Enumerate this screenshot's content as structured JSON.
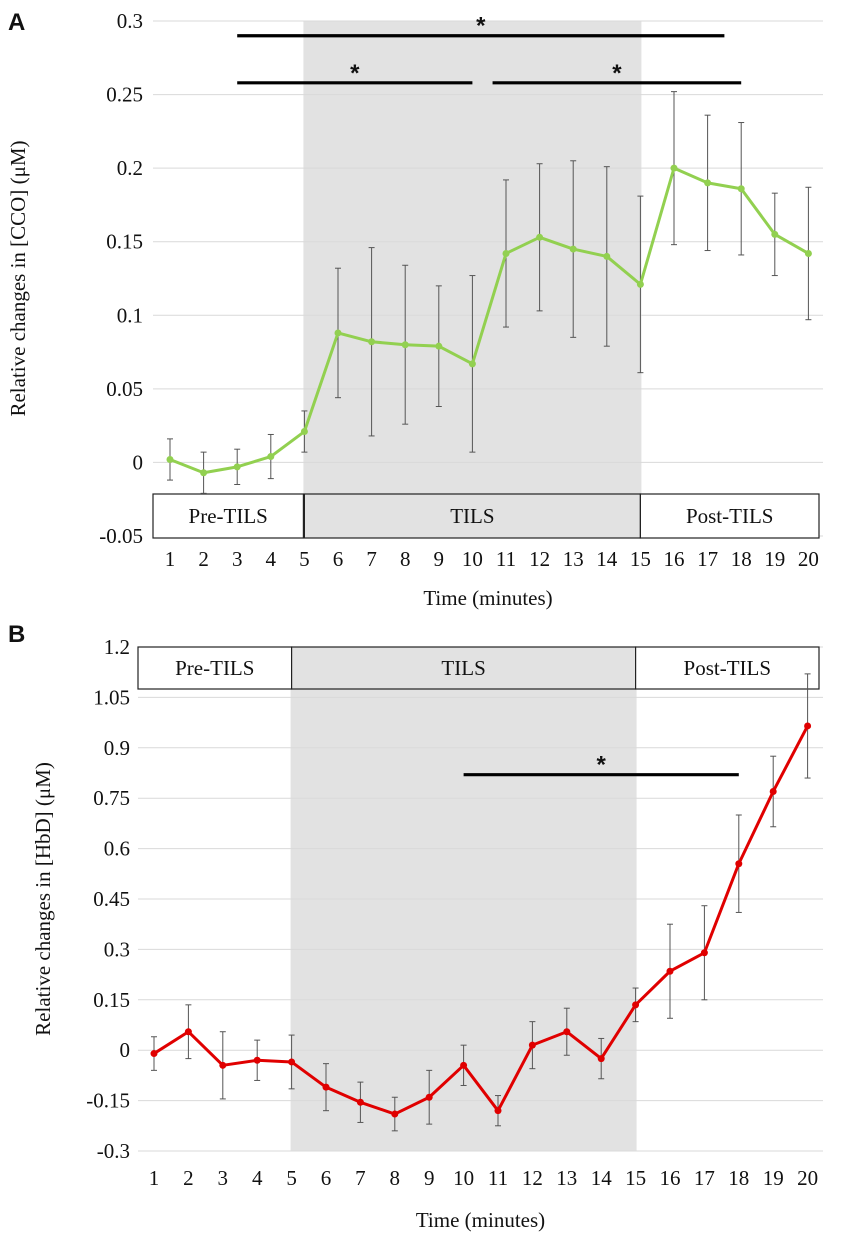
{
  "chart_data": [
    {
      "type": "line",
      "panel_label": "A",
      "ylabel": "Relative changes in [CCO] (μM)",
      "xlabel": "Time (minutes)",
      "ylim": [
        -0.05,
        0.3
      ],
      "y_ticks": [
        -0.05,
        0,
        0.05,
        0.1,
        0.15,
        0.2,
        0.25,
        0.3
      ],
      "y_tick_labels": [
        "-0.05",
        "0",
        "0.05",
        "0.1",
        "0.15",
        "0.2",
        "0.25",
        "0.3"
      ],
      "x": [
        1,
        2,
        3,
        4,
        5,
        6,
        7,
        8,
        9,
        10,
        11,
        12,
        13,
        14,
        15,
        16,
        17,
        18,
        19,
        20
      ],
      "x_tick_labels": [
        "1",
        "2",
        "3",
        "4",
        "5",
        "6",
        "7",
        "8",
        "9",
        "10",
        "11",
        "12",
        "13",
        "14",
        "15",
        "16",
        "17",
        "18",
        "19",
        "20"
      ],
      "grid": true,
      "series": [
        {
          "name": "CCO",
          "color": "#92d050",
          "values": [
            0.002,
            -0.007,
            -0.003,
            0.004,
            0.021,
            0.088,
            0.082,
            0.08,
            0.079,
            0.067,
            0.142,
            0.153,
            0.145,
            0.14,
            0.121,
            0.2,
            0.19,
            0.186,
            0.155,
            0.142
          ],
          "errors": [
            0.014,
            0.014,
            0.012,
            0.015,
            0.014,
            0.044,
            0.064,
            0.054,
            0.041,
            0.06,
            0.05,
            0.05,
            0.06,
            0.061,
            0.06,
            0.052,
            0.046,
            0.045,
            0.028,
            0.045
          ]
        }
      ],
      "shaded_region": {
        "from": 5,
        "to": 15,
        "color": "#e2e2e2"
      },
      "phases": [
        {
          "label": "Pre-TILS",
          "from": 1,
          "to": 5,
          "fill": "#ffffff"
        },
        {
          "label": "TILS",
          "from": 5,
          "to": 15,
          "fill": "#e2e2e2"
        },
        {
          "label": "Post-TILS",
          "from": 15,
          "to": 20,
          "fill": "#ffffff"
        }
      ],
      "significance": [
        {
          "from": 3,
          "to": 17.5,
          "level": 0.29,
          "label": "*"
        },
        {
          "from": 3,
          "to": 10,
          "level": 0.258,
          "label": "*"
        },
        {
          "from": 10.6,
          "to": 18,
          "level": 0.258,
          "label": "*"
        }
      ]
    },
    {
      "type": "line",
      "panel_label": "B",
      "ylabel": "Relative changes in [HbD] (μM)",
      "xlabel": "Time (minutes)",
      "ylim": [
        -0.3,
        1.2
      ],
      "y_ticks": [
        -0.3,
        -0.15,
        0,
        0.15,
        0.3,
        0.45,
        0.6,
        0.75,
        0.9,
        1.05,
        1.2
      ],
      "y_tick_labels": [
        "-0.3",
        "-0.15",
        "0",
        "0.15",
        "0.3",
        "0.45",
        "0.6",
        "0.75",
        "0.9",
        "1.05",
        "1.2"
      ],
      "x": [
        1,
        2,
        3,
        4,
        5,
        6,
        7,
        8,
        9,
        10,
        11,
        12,
        13,
        14,
        15,
        16,
        17,
        18,
        19,
        20
      ],
      "x_tick_labels": [
        "1",
        "2",
        "3",
        "4",
        "5",
        "6",
        "7",
        "8",
        "9",
        "10",
        "11",
        "12",
        "13",
        "14",
        "15",
        "16",
        "17",
        "18",
        "19",
        "20"
      ],
      "grid": true,
      "series": [
        {
          "name": "HbD",
          "color": "#e00000",
          "values": [
            -0.01,
            0.055,
            -0.045,
            -0.03,
            -0.035,
            -0.11,
            -0.155,
            -0.19,
            -0.14,
            -0.045,
            -0.18,
            0.015,
            0.055,
            -0.025,
            0.135,
            0.235,
            0.29,
            0.555,
            0.77,
            0.965
          ],
          "errors": [
            0.05,
            0.08,
            0.1,
            0.06,
            0.08,
            0.07,
            0.06,
            0.05,
            0.08,
            0.06,
            0.045,
            0.07,
            0.07,
            0.06,
            0.05,
            0.14,
            0.14,
            0.145,
            0.105,
            0.155
          ]
        }
      ],
      "shaded_region": {
        "from": 5,
        "to": 15,
        "color": "#e2e2e2"
      },
      "phases": [
        {
          "label": "Pre-TILS",
          "from": 1,
          "to": 5,
          "fill": "#ffffff"
        },
        {
          "label": "TILS",
          "from": 5,
          "to": 15,
          "fill": "#e2e2e2"
        },
        {
          "label": "Post-TILS",
          "from": 15,
          "to": 20,
          "fill": "#ffffff"
        }
      ],
      "significance": [
        {
          "from": 10,
          "to": 18,
          "level": 0.82,
          "label": "*"
        }
      ]
    }
  ]
}
